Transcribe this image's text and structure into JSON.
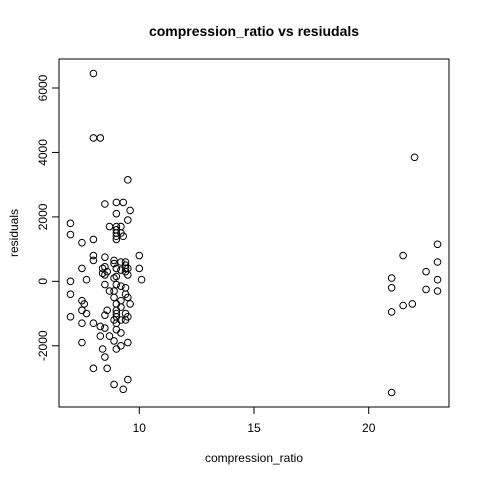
{
  "chart_data": {
    "type": "scatter",
    "title": "compression_ratio  vs resiudals",
    "xlabel": "compression_ratio",
    "ylabel": "residuals",
    "xlim": [
      6.5,
      23.5
    ],
    "ylim": [
      -3900,
      6900
    ],
    "x_ticks": [
      10,
      15,
      20
    ],
    "y_ticks": [
      -2000,
      0,
      2000,
      4000,
      6000
    ],
    "x_tick_labels": [
      "10",
      "15",
      "20"
    ],
    "y_tick_labels": [
      "-2000",
      "0",
      "2000",
      "4000",
      "6000"
    ],
    "grid": false,
    "legend": "none",
    "marker": "open-circle",
    "colors": {
      "marker": "#000000",
      "axes": "#000000",
      "background": "#ffffff"
    },
    "points": [
      [
        7.0,
        1800
      ],
      [
        7.0,
        1450
      ],
      [
        7.0,
        -1100
      ],
      [
        7.0,
        0
      ],
      [
        7.0,
        -400
      ],
      [
        7.5,
        1200
      ],
      [
        7.5,
        400
      ],
      [
        7.5,
        -600
      ],
      [
        7.5,
        -900
      ],
      [
        7.5,
        -1300
      ],
      [
        7.5,
        -1900
      ],
      [
        7.6,
        -700
      ],
      [
        7.7,
        50
      ],
      [
        7.7,
        -1000
      ],
      [
        8.0,
        6450
      ],
      [
        8.0,
        4450
      ],
      [
        8.0,
        1300
      ],
      [
        8.0,
        800
      ],
      [
        8.0,
        650
      ],
      [
        8.0,
        -1300
      ],
      [
        8.0,
        -2700
      ],
      [
        8.3,
        4450
      ],
      [
        8.3,
        -1400
      ],
      [
        8.3,
        -1700
      ],
      [
        8.4,
        400
      ],
      [
        8.4,
        250
      ],
      [
        8.4,
        -2100
      ],
      [
        8.5,
        2400
      ],
      [
        8.5,
        750
      ],
      [
        8.5,
        450
      ],
      [
        8.5,
        200
      ],
      [
        8.5,
        -100
      ],
      [
        8.5,
        -1050
      ],
      [
        8.5,
        -1450
      ],
      [
        8.5,
        -2350
      ],
      [
        8.6,
        300
      ],
      [
        8.6,
        -900
      ],
      [
        8.6,
        -2700
      ],
      [
        8.7,
        1700
      ],
      [
        8.7,
        -300
      ],
      [
        8.7,
        -1700
      ],
      [
        8.9,
        650
      ],
      [
        8.9,
        550
      ],
      [
        8.9,
        100
      ],
      [
        8.9,
        -300
      ],
      [
        8.9,
        -500
      ],
      [
        8.9,
        -1200
      ],
      [
        8.9,
        -1850
      ],
      [
        8.9,
        -3200
      ],
      [
        9.0,
        2450
      ],
      [
        9.0,
        2100
      ],
      [
        9.0,
        1700
      ],
      [
        9.0,
        1600
      ],
      [
        9.0,
        1500
      ],
      [
        9.0,
        1400
      ],
      [
        9.0,
        1300
      ],
      [
        9.0,
        400
      ],
      [
        9.0,
        150
      ],
      [
        9.0,
        -100
      ],
      [
        9.0,
        -700
      ],
      [
        9.0,
        -900
      ],
      [
        9.0,
        -1000
      ],
      [
        9.0,
        -1100
      ],
      [
        9.0,
        -1300
      ],
      [
        9.0,
        -1500
      ],
      [
        9.0,
        -2100
      ],
      [
        9.2,
        1700
      ],
      [
        9.2,
        1500
      ],
      [
        9.2,
        600
      ],
      [
        9.2,
        350
      ],
      [
        9.2,
        -150
      ],
      [
        9.2,
        -600
      ],
      [
        9.2,
        -800
      ],
      [
        9.2,
        -1200
      ],
      [
        9.2,
        -1600
      ],
      [
        9.2,
        -2000
      ],
      [
        9.3,
        2450
      ],
      [
        9.3,
        1400
      ],
      [
        9.3,
        -3350
      ],
      [
        9.4,
        600
      ],
      [
        9.4,
        500
      ],
      [
        9.4,
        400
      ],
      [
        9.4,
        300
      ],
      [
        9.4,
        -200
      ],
      [
        9.4,
        -400
      ],
      [
        9.4,
        -1000
      ],
      [
        9.4,
        -1200
      ],
      [
        9.5,
        3150
      ],
      [
        9.5,
        1900
      ],
      [
        9.5,
        400
      ],
      [
        9.5,
        200
      ],
      [
        9.5,
        -500
      ],
      [
        9.5,
        -1100
      ],
      [
        9.5,
        -1900
      ],
      [
        9.5,
        -3050
      ],
      [
        9.6,
        2200
      ],
      [
        9.6,
        -700
      ],
      [
        10.0,
        800
      ],
      [
        10.0,
        400
      ],
      [
        10.1,
        50
      ],
      [
        21.0,
        100
      ],
      [
        21.0,
        -200
      ],
      [
        21.0,
        -950
      ],
      [
        21.0,
        -3450
      ],
      [
        21.5,
        800
      ],
      [
        21.5,
        -750
      ],
      [
        21.9,
        -700
      ],
      [
        22.0,
        3850
      ],
      [
        22.5,
        300
      ],
      [
        22.5,
        -250
      ],
      [
        23.0,
        1150
      ],
      [
        23.0,
        600
      ],
      [
        23.0,
        50
      ],
      [
        23.0,
        -300
      ]
    ]
  }
}
